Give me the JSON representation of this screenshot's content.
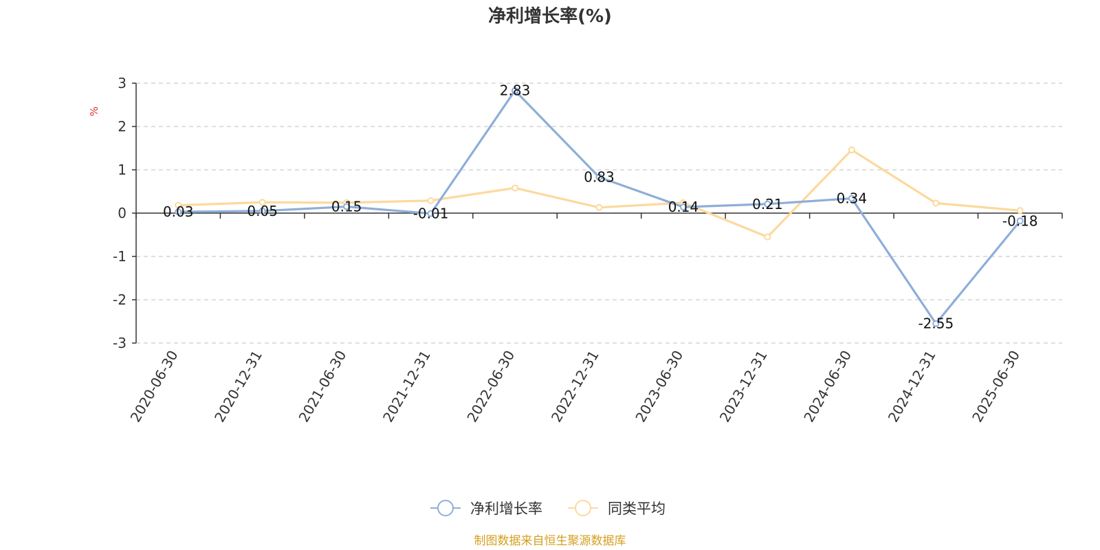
{
  "chart_data": {
    "type": "line",
    "title": "净利增长率(%)",
    "ylabel": "%",
    "ylim": [
      -3,
      3
    ],
    "yticks": [
      3,
      2,
      1,
      0,
      -1,
      -2,
      -3
    ],
    "grid": true,
    "legend_position": "bottom",
    "categories": [
      "2020-06-30",
      "2020-12-31",
      "2021-06-30",
      "2021-12-31",
      "2022-06-30",
      "2022-12-31",
      "2023-06-30",
      "2023-12-31",
      "2024-06-30",
      "2024-12-31",
      "2025-06-30"
    ],
    "series": [
      {
        "name": "净利增长率",
        "color": "#8eaed9",
        "values": [
          0.03,
          0.05,
          0.15,
          -0.01,
          2.83,
          0.83,
          0.14,
          0.21,
          0.34,
          -2.55,
          -0.18
        ],
        "data_labels": [
          "0.03",
          "0.05",
          "0.15",
          "-0.01",
          "2.83",
          "0.83",
          "0.14",
          "0.21",
          "0.34",
          "-2.55",
          "-0.18"
        ]
      },
      {
        "name": "同类平均",
        "color": "#fcd99d",
        "values": [
          0.18,
          0.25,
          0.24,
          0.29,
          0.58,
          0.13,
          0.24,
          -0.55,
          1.46,
          0.23,
          0.06
        ]
      }
    ],
    "source": "制图数据来自恒生聚源数据库"
  },
  "colors": {
    "axis": "#333333",
    "grid": "#cccccc",
    "unit": "#e03030",
    "source": "#d4a020"
  }
}
